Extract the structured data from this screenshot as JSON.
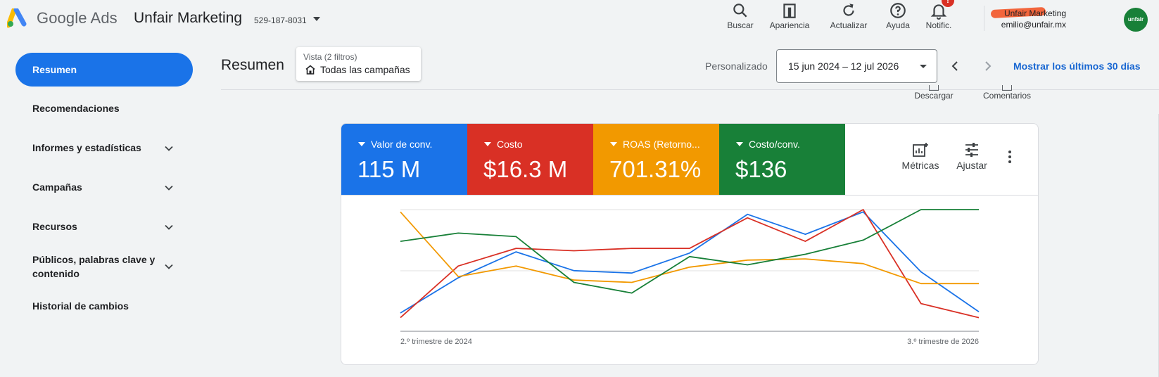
{
  "header": {
    "brand": "Google Ads",
    "account_name": "Unfair Marketing",
    "account_id": "529-187-8031",
    "tools": [
      {
        "label": "Buscar",
        "icon": "search-icon"
      },
      {
        "label": "Apariencia",
        "icon": "appearance-icon"
      },
      {
        "label": "Actualizar",
        "icon": "refresh-icon"
      },
      {
        "label": "Ayuda",
        "icon": "help-icon"
      },
      {
        "label": "Notific.",
        "icon": "bell-icon",
        "badge": "!"
      }
    ],
    "user_name": "Unfair Marketing",
    "user_email": "emilio@unfair.mx",
    "avatar_text": "unfair"
  },
  "sidebar": {
    "items": [
      {
        "label": "Resumen",
        "active": true
      },
      {
        "label": "Recomendaciones"
      },
      {
        "label": "Informes y estadísticas",
        "expandable": true
      },
      {
        "label": "Campañas",
        "expandable": true
      },
      {
        "label": "Recursos",
        "expandable": true
      },
      {
        "label": "Públicos, palabras clave y contenido",
        "expandable": true
      },
      {
        "label": "Historial de cambios"
      }
    ]
  },
  "content": {
    "title": "Resumen",
    "view_filter_label": "Vista (2 filtros)",
    "view_filter_value": "Todas las campañas",
    "range_label": "Personalizado",
    "date_range": "15 jun 2024 – 12 jul 2026",
    "last_30_link": "Mostrar los últimos 30 días",
    "actions": [
      "Descargar",
      "Comentarios"
    ]
  },
  "metrics": [
    {
      "name": "Valor de conv.",
      "value": "115 M",
      "color": "#1a73e8"
    },
    {
      "name": "Costo",
      "value": "$16.3 M",
      "color": "#d93025"
    },
    {
      "name": "ROAS (Retorno...",
      "value": "701.31%",
      "color": "#f29900"
    },
    {
      "name": "Costo/conv.",
      "value": "$136",
      "color": "#188038"
    }
  ],
  "controls": [
    "Métricas",
    "Ajustar"
  ],
  "chart_data": {
    "type": "line",
    "x_start_label": "2.º trimestre de 2024",
    "x_end_label": "3.º trimestre de 2026",
    "grid": true,
    "normalized": true,
    "ylim": [
      0,
      100
    ],
    "points": 11,
    "series": [
      {
        "name": "Valor de conv.",
        "color": "#1a73e8",
        "values": [
          12,
          42,
          64,
          48,
          46,
          63,
          96,
          79,
          98,
          47,
          13
        ]
      },
      {
        "name": "Costo",
        "color": "#d93025",
        "values": [
          8,
          52,
          67,
          65,
          67,
          67,
          93,
          73,
          100,
          20,
          8
        ]
      },
      {
        "name": "ROAS (Retorno...",
        "color": "#f29900",
        "values": [
          98,
          43,
          52,
          40,
          38,
          51,
          57,
          58,
          54,
          37,
          37
        ]
      },
      {
        "name": "Costo/conv.",
        "color": "#188038",
        "values": [
          73,
          80,
          77,
          38,
          29,
          60,
          53,
          62,
          74,
          100,
          100
        ]
      }
    ]
  }
}
